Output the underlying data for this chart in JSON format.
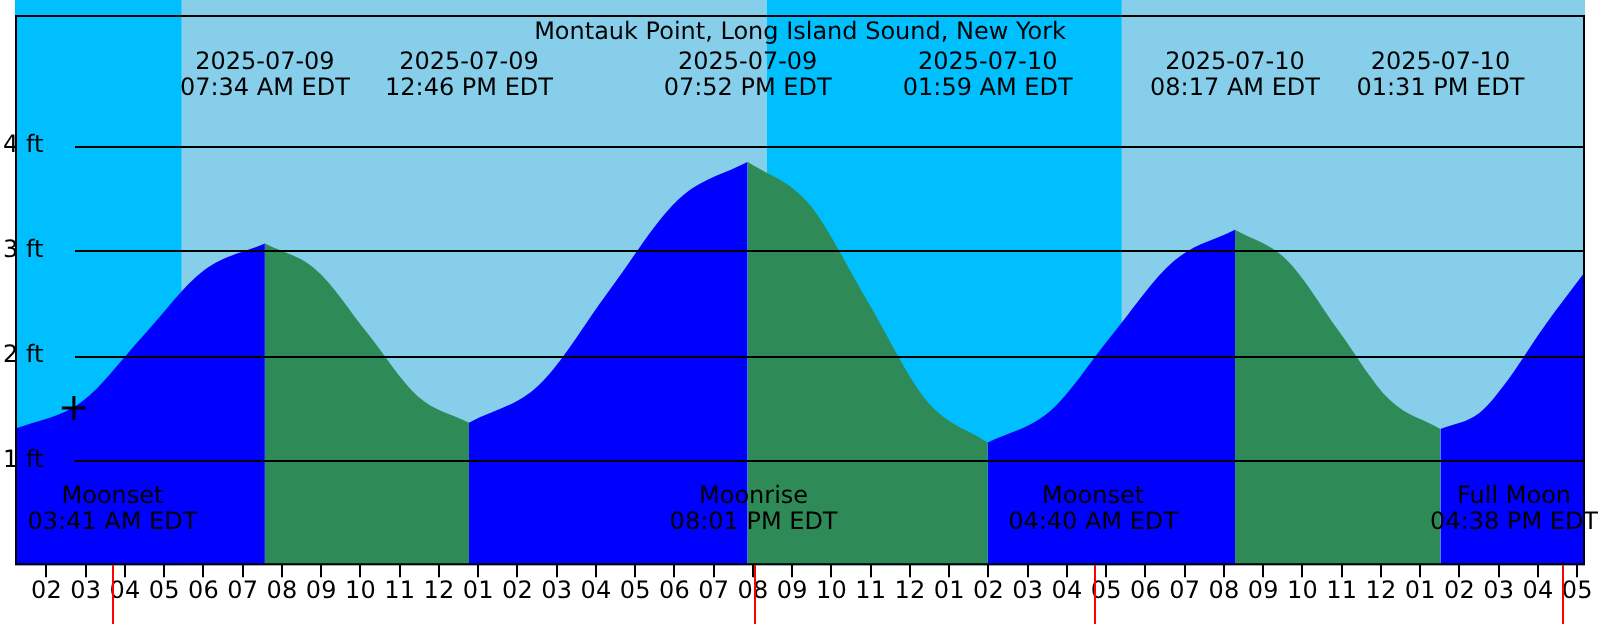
{
  "chart_data": {
    "type": "area",
    "title": "Montauk Point, Long Island Sound, New York",
    "series": [
      {
        "color": "#0000ff",
        "x": [
          "2025-07-09T01:12",
          "2025-07-09T02:54",
          "2025-07-09T04:28",
          "2025-07-09T06:00",
          "2025-07-09T07:34"
        ],
        "values": [
          1.3,
          1.56,
          2.19,
          2.81,
          3.07
        ]
      },
      {
        "color": "#2e8b57",
        "x": [
          "2025-07-09T07:34",
          "2025-07-09T08:52",
          "2025-07-09T10:10",
          "2025-07-09T11:28",
          "2025-07-09T12:46"
        ],
        "values": [
          3.07,
          2.82,
          2.22,
          1.61,
          1.36
        ]
      },
      {
        "color": "#0000ff",
        "x": [
          "2025-07-09T12:46",
          "2025-07-09T14:33",
          "2025-07-09T16:19",
          "2025-07-09T18:06",
          "2025-07-09T19:52"
        ],
        "values": [
          1.36,
          1.72,
          2.61,
          3.49,
          3.85
        ]
      },
      {
        "color": "#2e8b57",
        "x": [
          "2025-07-09T19:52",
          "2025-07-09T21:24",
          "2025-07-09T22:56",
          "2025-07-10T00:27",
          "2025-07-10T01:59"
        ],
        "values": [
          3.85,
          3.46,
          2.51,
          1.56,
          1.17
        ]
      },
      {
        "color": "#0000ff",
        "x": [
          "2025-07-10T01:59",
          "2025-07-10T03:34",
          "2025-07-10T05:08",
          "2025-07-10T06:43",
          "2025-07-10T08:17"
        ],
        "values": [
          1.17,
          1.47,
          2.19,
          2.9,
          3.2
        ]
      },
      {
        "color": "#2e8b57",
        "x": [
          "2025-07-10T08:17",
          "2025-07-10T09:35",
          "2025-07-10T10:54",
          "2025-07-10T12:13",
          "2025-07-10T13:31"
        ],
        "values": [
          3.2,
          2.92,
          2.25,
          1.58,
          1.3
        ]
      },
      {
        "color": "#0000ff",
        "x": [
          "2025-07-10T13:31",
          "2025-07-10T14:30",
          "2025-07-10T15:06",
          "2025-07-10T16:12",
          "2025-07-10T17:12"
        ],
        "values": [
          1.3,
          1.45,
          1.7,
          2.3,
          2.8
        ]
      },
      {
        "type": "scatter",
        "marker": "cross",
        "color": "#000000",
        "x": [
          "2025-07-09T02:42"
        ],
        "values": [
          1.5
        ]
      }
    ],
    "xlim": [
      "2025-07-09T01:12",
      "2025-07-10T17:12"
    ],
    "xticks": [
      {
        "value": "2025-07-09T02:00",
        "label": "02"
      },
      {
        "value": "2025-07-09T03:00",
        "label": "03"
      },
      {
        "value": "2025-07-09T04:00",
        "label": "04"
      },
      {
        "value": "2025-07-09T05:00",
        "label": "05"
      },
      {
        "value": "2025-07-09T06:00",
        "label": "06"
      },
      {
        "value": "2025-07-09T07:00",
        "label": "07"
      },
      {
        "value": "2025-07-09T08:00",
        "label": "08"
      },
      {
        "value": "2025-07-09T09:00",
        "label": "09"
      },
      {
        "value": "2025-07-09T10:00",
        "label": "10"
      },
      {
        "value": "2025-07-09T11:00",
        "label": "11"
      },
      {
        "value": "2025-07-09T12:00",
        "label": "12"
      },
      {
        "value": "2025-07-09T13:00",
        "label": "01"
      },
      {
        "value": "2025-07-09T14:00",
        "label": "02"
      },
      {
        "value": "2025-07-09T15:00",
        "label": "03"
      },
      {
        "value": "2025-07-09T16:00",
        "label": "04"
      },
      {
        "value": "2025-07-09T17:00",
        "label": "05"
      },
      {
        "value": "2025-07-09T18:00",
        "label": "06"
      },
      {
        "value": "2025-07-09T19:00",
        "label": "07"
      },
      {
        "value": "2025-07-09T20:00",
        "label": "08"
      },
      {
        "value": "2025-07-09T21:00",
        "label": "09"
      },
      {
        "value": "2025-07-09T22:00",
        "label": "10"
      },
      {
        "value": "2025-07-09T23:00",
        "label": "11"
      },
      {
        "value": "2025-07-10T00:00",
        "label": "12"
      },
      {
        "value": "2025-07-10T01:00",
        "label": "01"
      },
      {
        "value": "2025-07-10T02:00",
        "label": "02"
      },
      {
        "value": "2025-07-10T03:00",
        "label": "03"
      },
      {
        "value": "2025-07-10T04:00",
        "label": "04"
      },
      {
        "value": "2025-07-10T05:00",
        "label": "05"
      },
      {
        "value": "2025-07-10T06:00",
        "label": "06"
      },
      {
        "value": "2025-07-10T07:00",
        "label": "07"
      },
      {
        "value": "2025-07-10T08:00",
        "label": "08"
      },
      {
        "value": "2025-07-10T09:00",
        "label": "09"
      },
      {
        "value": "2025-07-10T10:00",
        "label": "10"
      },
      {
        "value": "2025-07-10T11:00",
        "label": "11"
      },
      {
        "value": "2025-07-10T12:00",
        "label": "12"
      },
      {
        "value": "2025-07-10T13:00",
        "label": "01"
      },
      {
        "value": "2025-07-10T14:00",
        "label": "02"
      },
      {
        "value": "2025-07-10T15:00",
        "label": "03"
      },
      {
        "value": "2025-07-10T16:00",
        "label": "04"
      },
      {
        "value": "2025-07-10T17:00",
        "label": "05"
      }
    ],
    "ylim": [
      0,
      5.25
    ],
    "yticks": [
      {
        "value": 1,
        "label": "1 ft"
      },
      {
        "value": 2,
        "label": "2 ft"
      },
      {
        "value": 3,
        "label": "3 ft"
      },
      {
        "value": 4,
        "label": "4 ft"
      }
    ],
    "grid": "y",
    "bands": [
      {
        "axis": "x",
        "from": "2025-07-09T01:12",
        "to": "2025-07-09T05:27",
        "color": "#00bfff"
      },
      {
        "axis": "x",
        "from": "2025-07-09T05:27",
        "to": "2025-07-09T20:21",
        "color": "#87ceeb"
      },
      {
        "axis": "x",
        "from": "2025-07-09T20:21",
        "to": "2025-07-10T05:24",
        "color": "#00bfff"
      },
      {
        "axis": "x",
        "from": "2025-07-10T05:24",
        "to": "2025-07-10T17:12",
        "color": "#87ceeb"
      }
    ],
    "ref_lines": [
      {
        "axis": "x",
        "value": "2025-07-09T03:41",
        "label": "Moonset\n03:41 AM EDT",
        "color": "#ff0000"
      },
      {
        "axis": "x",
        "value": "2025-07-09T20:01",
        "label": "Moonrise\n08:01 PM EDT",
        "color": "#ff0000"
      },
      {
        "axis": "x",
        "value": "2025-07-10T04:40",
        "label": "Moonset\n04:40 AM EDT",
        "color": "#ff0000"
      },
      {
        "axis": "x",
        "value": "2025-07-10T16:38",
        "label": "Full Moon\n04:38 PM EDT",
        "color": "#ff0000"
      }
    ],
    "annotations": [
      "2025-07-09\n07:34 AM EDT",
      "2025-07-09\n12:46 PM EDT",
      "2025-07-09\n07:52 PM EDT",
      "2025-07-10\n01:59 AM EDT",
      "2025-07-10\n08:17 AM EDT",
      "2025-07-10\n01:31 PM EDT"
    ]
  }
}
